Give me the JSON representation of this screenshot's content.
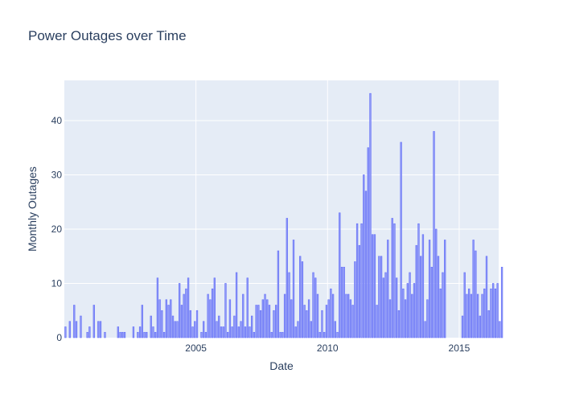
{
  "chart_data": {
    "type": "bar",
    "title": "Power Outages over Time",
    "xlabel": "Date",
    "ylabel": "Monthly Outages",
    "x_tick_labels": [
      "2005",
      "2010",
      "2015"
    ],
    "y_tick_labels": [
      "0",
      "10",
      "20",
      "30",
      "40"
    ],
    "xlim": [
      "2000-01",
      "2016-07"
    ],
    "ylim": [
      0,
      47.4
    ],
    "grid": true,
    "colors": {
      "bar_fill": "#8f99f5",
      "bar_stroke": "#636efa",
      "plot_bg": "#e5ecf6",
      "grid": "#ffffff",
      "text": "#2a3f5f"
    },
    "series": [
      {
        "start": "2000-01",
        "values": [
          2,
          0,
          3,
          0,
          6,
          3,
          0,
          4,
          0,
          0,
          1,
          2,
          0,
          6,
          0,
          3,
          3,
          0,
          1,
          0,
          0,
          0,
          0,
          0,
          2,
          1,
          1,
          1,
          0,
          0,
          0,
          2,
          0,
          1,
          2,
          6,
          1,
          1,
          0,
          4,
          2,
          1,
          11,
          7,
          5,
          1,
          7,
          6,
          7,
          4,
          3,
          3,
          10,
          6,
          8,
          9,
          11,
          5,
          2,
          3,
          5,
          0,
          1,
          3,
          1,
          8,
          7,
          9,
          11,
          3,
          4,
          2,
          2,
          10,
          1,
          7,
          2,
          4,
          12,
          2,
          3,
          8,
          2,
          11,
          2,
          4,
          1,
          6,
          6,
          5,
          7,
          8,
          7,
          6,
          1,
          5,
          6,
          16,
          1,
          1,
          8,
          22,
          12,
          7,
          18,
          2,
          3,
          15,
          14,
          6,
          5,
          7,
          3,
          12,
          11,
          8,
          1,
          5,
          1,
          6,
          7,
          9,
          8,
          3,
          1,
          23,
          13,
          13,
          8,
          8,
          7,
          6,
          14,
          21,
          17,
          21,
          30,
          27,
          35,
          45,
          19,
          19,
          6,
          15,
          15,
          11,
          12,
          18,
          7,
          22,
          21,
          11,
          5,
          36,
          9,
          7,
          10,
          12,
          8,
          10,
          17,
          21,
          15,
          19,
          3,
          7,
          18,
          13,
          38,
          20,
          15,
          9,
          12,
          18,
          0,
          0,
          0,
          0,
          0,
          0,
          0,
          4,
          12,
          8,
          9,
          8,
          18,
          16,
          8,
          4,
          8,
          9,
          15,
          5,
          9,
          10,
          9,
          10,
          3,
          13
        ]
      }
    ]
  }
}
